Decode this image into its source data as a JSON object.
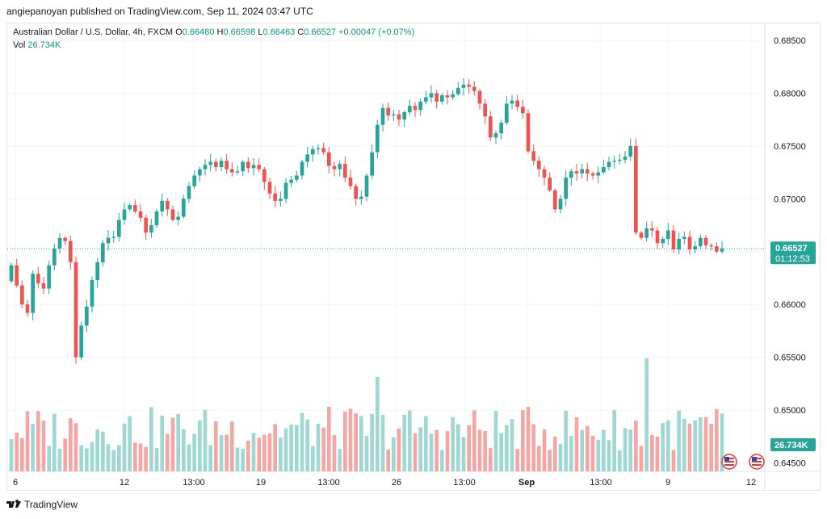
{
  "header": {
    "published": "angiepanoyan published on TradingView.com, Sep 11, 2024 03:47 UTC"
  },
  "legend": {
    "symbol": "Australian Dollar / U.S. Dollar, 4h, FXCM",
    "o_key": "O",
    "o_val": "0.66480",
    "h_key": "H",
    "h_val": "0.66598",
    "l_key": "L",
    "l_val": "0.66463",
    "c_key": "C",
    "c_val": "0.66527",
    "change": "+0.00047 (+0.07%)",
    "vol_key": "Vol",
    "vol_val": "26.734K"
  },
  "footer": {
    "brand": "TradingView"
  },
  "colors": {
    "up": "#26a69a",
    "down": "#ef5350",
    "up_vol": "#9fd8d2",
    "down_vol": "#f5a6a4",
    "price_line": "#26a69a"
  },
  "chart_data": {
    "type": "candlestick",
    "title": "Australian Dollar / U.S. Dollar, 4h, FXCM",
    "price_axis": {
      "ticks": [
        0.645,
        0.65,
        0.655,
        0.66,
        0.665,
        0.67,
        0.675,
        0.68,
        0.685
      ],
      "tick_labels": [
        "0.64500",
        "0.65000",
        "0.65500",
        "0.66000",
        "0.66500",
        "0.67000",
        "0.67500",
        "0.68000",
        "0.68500"
      ],
      "ylim": [
        0.6442,
        0.6866
      ]
    },
    "time_axis": {
      "labels": [
        "6",
        "12",
        "13:00",
        "19",
        "13:00",
        "26",
        "13:00",
        "Sep",
        "13:00",
        "9",
        "12"
      ]
    },
    "last_price": {
      "value": 0.66527,
      "label": "0.66527",
      "countdown": "01:12:53"
    },
    "volume_label": "26.734K",
    "grid": true,
    "closes": [
      0.6637,
      0.6618,
      0.66,
      0.6592,
      0.6629,
      0.662,
      0.6615,
      0.6637,
      0.6653,
      0.6663,
      0.666,
      0.664,
      0.655,
      0.658,
      0.6598,
      0.6623,
      0.664,
      0.6658,
      0.6663,
      0.6664,
      0.668,
      0.669,
      0.6694,
      0.6688,
      0.6682,
      0.6668,
      0.6675,
      0.6688,
      0.6698,
      0.669,
      0.668,
      0.6683,
      0.67,
      0.6712,
      0.6722,
      0.6728,
      0.6732,
      0.6735,
      0.673,
      0.6736,
      0.6728,
      0.6725,
      0.6726,
      0.6735,
      0.6729,
      0.6732,
      0.6728,
      0.6716,
      0.6705,
      0.6698,
      0.67,
      0.6715,
      0.6718,
      0.6722,
      0.6735,
      0.6742,
      0.6747,
      0.6748,
      0.6744,
      0.6731,
      0.6728,
      0.6733,
      0.672,
      0.6712,
      0.67,
      0.6702,
      0.6722,
      0.6744,
      0.677,
      0.6786,
      0.6779,
      0.678,
      0.6775,
      0.6782,
      0.6788,
      0.6784,
      0.6792,
      0.6796,
      0.68,
      0.6792,
      0.6798,
      0.6796,
      0.6799,
      0.6805,
      0.6808,
      0.6806,
      0.6802,
      0.679,
      0.6778,
      0.6758,
      0.6762,
      0.6772,
      0.679,
      0.6793,
      0.6787,
      0.6781,
      0.6745,
      0.6736,
      0.6728,
      0.672,
      0.6708,
      0.669,
      0.67,
      0.672,
      0.6726,
      0.6724,
      0.6728,
      0.6724,
      0.6722,
      0.6725,
      0.673,
      0.6735,
      0.6736,
      0.6737,
      0.674,
      0.675,
      0.6668,
      0.6663,
      0.6672,
      0.667,
      0.6658,
      0.6662,
      0.667,
      0.6652,
      0.6662,
      0.6664,
      0.6652,
      0.6655,
      0.6663,
      0.6656,
      0.6655,
      0.665,
      0.6653
    ]
  }
}
